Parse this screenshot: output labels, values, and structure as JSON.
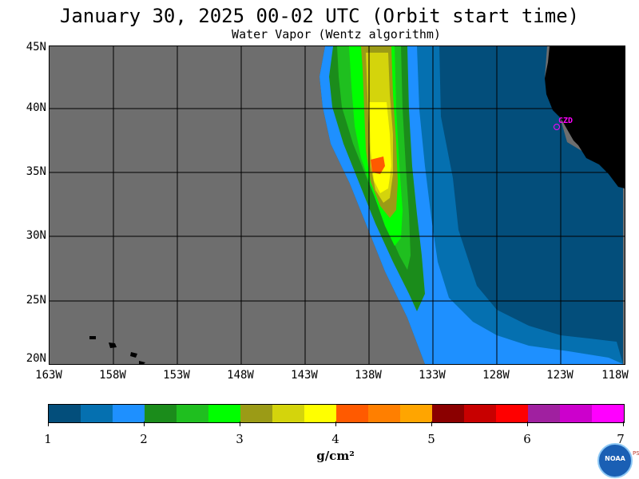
{
  "title": "January 30, 2025  00-02 UTC  (Orbit start time)",
  "subtitle": "Water Vapor (Wentz algorithm)",
  "lat_labels": [
    "45N",
    "40N",
    "35N",
    "30N",
    "25N",
    "20N"
  ],
  "lon_labels": [
    "163W",
    "158W",
    "153W",
    "148W",
    "143W",
    "138W",
    "133W",
    "128W",
    "123W",
    "118W"
  ],
  "station_label": "CZD",
  "colorbar": {
    "colors": [
      "#034e7b",
      "#0570b0",
      "#1e90ff",
      "#1b8c1b",
      "#1fbf1f",
      "#00ff00",
      "#9b9b16",
      "#d4d40c",
      "#ffff00",
      "#ff5a00",
      "#ff7f00",
      "#ffa500",
      "#8b0000",
      "#c80000",
      "#ff0000",
      "#a020a0",
      "#cc00cc",
      "#ff00ff"
    ],
    "tick_labels": [
      "1",
      "2",
      "3",
      "4",
      "5",
      "6",
      "7"
    ]
  },
  "unit_label": "g/cm²",
  "logo_text": "NOAA",
  "logo_side_text": "PSL",
  "palette": {
    "land": "#000000",
    "no_data": "#6e6e6e",
    "grid": "#000000"
  }
}
